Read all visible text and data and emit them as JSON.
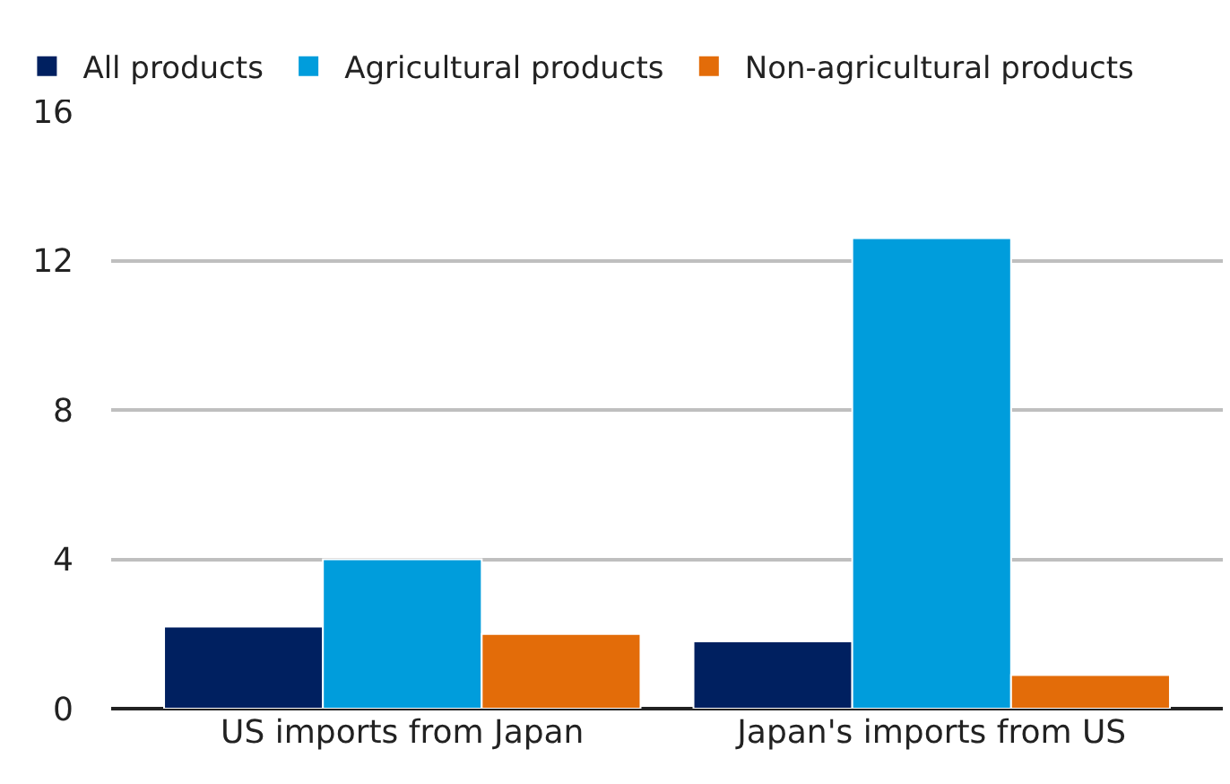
{
  "chart_data": {
    "type": "bar",
    "categories": [
      "US imports from Japan",
      "Japan's imports from US"
    ],
    "series": [
      {
        "name": "All products",
        "color": "#002060",
        "values": [
          2.2,
          1.8
        ]
      },
      {
        "name": "Agricultural products",
        "color": "#009ddc",
        "values": [
          4.0,
          12.6
        ]
      },
      {
        "name": "Non-agricultural products",
        "color": "#e36c09",
        "values": [
          2.0,
          0.9
        ]
      }
    ],
    "ylim": [
      0,
      16
    ],
    "yticks": [
      0,
      4,
      8,
      12,
      16
    ],
    "grid": "y",
    "legend": "top left"
  }
}
